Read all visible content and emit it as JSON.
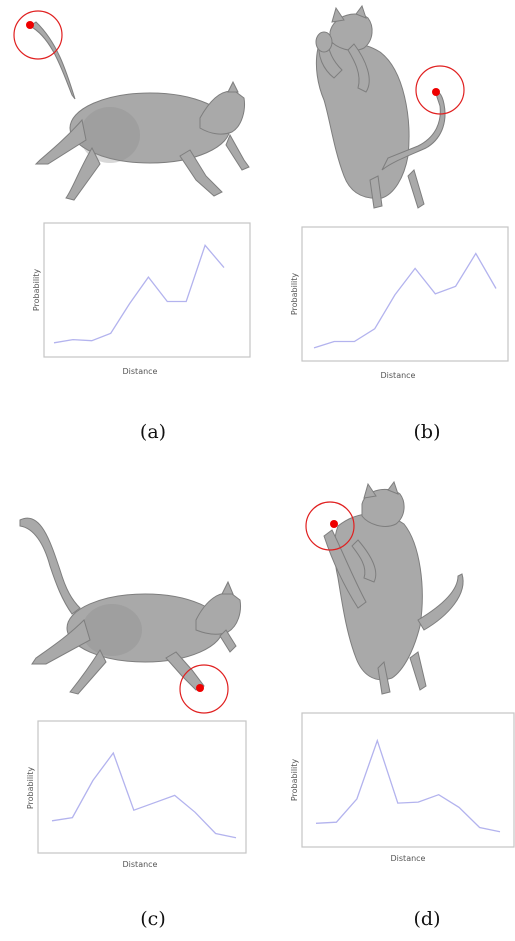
{
  "figure": {
    "panels": [
      {
        "caption": "(a)",
        "pose": "running",
        "marker": "tail-tip",
        "chart_data": {
          "type": "line",
          "xlabel": "Distance",
          "ylabel": "Probability",
          "series": [
            {
              "values": [
                0.03,
                0.06,
                0.05,
                0.12,
                0.4,
                0.65,
                0.42,
                0.42,
                0.95,
                0.74
              ]
            }
          ]
        }
      },
      {
        "caption": "(b)",
        "pose": "standing",
        "marker": "tail-tip",
        "chart_data": {
          "type": "line",
          "xlabel": "Distance",
          "ylabel": "Probability",
          "series": [
            {
              "values": [
                0.02,
                0.08,
                0.08,
                0.2,
                0.52,
                0.77,
                0.53,
                0.6,
                0.91,
                0.58
              ]
            }
          ]
        }
      },
      {
        "caption": "(c)",
        "pose": "running",
        "marker": "front-paw",
        "chart_data": {
          "type": "line",
          "xlabel": "Distance",
          "ylabel": "Probability",
          "series": [
            {
              "values": [
                0.2,
                0.23,
                0.58,
                0.84,
                0.3,
                0.37,
                0.44,
                0.28,
                0.08,
                0.04
              ]
            }
          ]
        }
      },
      {
        "caption": "(d)",
        "pose": "standing",
        "marker": "raised-paw",
        "chart_data": {
          "type": "line",
          "xlabel": "Distance",
          "ylabel": "Probability",
          "series": [
            {
              "values": [
                0.12,
                0.13,
                0.35,
                0.9,
                0.31,
                0.32,
                0.39,
                0.27,
                0.08,
                0.04
              ]
            }
          ]
        }
      }
    ],
    "colors": {
      "marker": "#ee0000",
      "series_line": "#b3b3ee",
      "cat_mesh": "#a9a9a9"
    }
  }
}
